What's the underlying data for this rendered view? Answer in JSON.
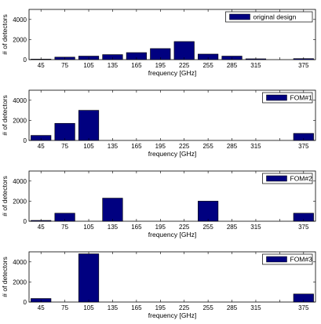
{
  "chart_data": [
    {
      "type": "bar",
      "categories": [
        "45",
        "75",
        "105",
        "135",
        "165",
        "195",
        "225",
        "255",
        "285",
        "315",
        "345",
        "375"
      ],
      "x_tick_labels": [
        "45",
        "75",
        "105",
        "135",
        "165",
        "195",
        "225",
        "255",
        "285",
        "315",
        "",
        "375"
      ],
      "series": [
        {
          "name": "original design",
          "values": [
            50,
            250,
            350,
            500,
            700,
            1100,
            1800,
            550,
            350,
            80,
            0,
            100
          ]
        }
      ],
      "xlabel": "frequency [GHz]",
      "ylabel": "# of detectors",
      "ylim": [
        0,
        5000
      ],
      "yticks": [
        "0",
        "2000",
        "4000"
      ],
      "legend": "top-right",
      "color": "#000080"
    },
    {
      "type": "bar",
      "categories": [
        "45",
        "75",
        "105",
        "135",
        "165",
        "195",
        "225",
        "255",
        "285",
        "315",
        "345",
        "375"
      ],
      "x_tick_labels": [
        "45",
        "75",
        "105",
        "135",
        "165",
        "195",
        "225",
        "255",
        "285",
        "315",
        "",
        "375"
      ],
      "series": [
        {
          "name": "FOM#1",
          "values": [
            500,
            1700,
            3000,
            0,
            0,
            0,
            0,
            0,
            0,
            0,
            0,
            700
          ]
        }
      ],
      "xlabel": "frequency [GHz]",
      "ylabel": "# of detectors",
      "ylim": [
        0,
        5000
      ],
      "yticks": [
        "0",
        "2000",
        "4000"
      ],
      "legend": "top-right",
      "color": "#000080"
    },
    {
      "type": "bar",
      "categories": [
        "45",
        "75",
        "105",
        "135",
        "165",
        "195",
        "225",
        "255",
        "285",
        "315",
        "345",
        "375"
      ],
      "x_tick_labels": [
        "45",
        "75",
        "105",
        "135",
        "165",
        "195",
        "225",
        "255",
        "285",
        "315",
        "",
        "375"
      ],
      "series": [
        {
          "name": "FOM#2",
          "values": [
            80,
            800,
            0,
            2300,
            0,
            0,
            0,
            2000,
            0,
            0,
            0,
            800
          ]
        }
      ],
      "xlabel": "frequency [GHz]",
      "ylabel": "# of detectors",
      "ylim": [
        0,
        5000
      ],
      "yticks": [
        "0",
        "2000",
        "4000"
      ],
      "legend": "top-right",
      "color": "#000080"
    },
    {
      "type": "bar",
      "categories": [
        "45",
        "75",
        "105",
        "135",
        "165",
        "195",
        "225",
        "255",
        "285",
        "315",
        "345",
        "375"
      ],
      "x_tick_labels": [
        "45",
        "75",
        "105",
        "135",
        "165",
        "195",
        "225",
        "255",
        "285",
        "315",
        "",
        "375"
      ],
      "series": [
        {
          "name": "FOM#3",
          "values": [
            350,
            0,
            4800,
            0,
            0,
            0,
            0,
            0,
            0,
            0,
            0,
            800
          ]
        }
      ],
      "xlabel": "frequency [GHz]",
      "ylabel": "# of detectors",
      "ylim": [
        0,
        5000
      ],
      "yticks": [
        "0",
        "2000",
        "4000"
      ],
      "legend": "top-right",
      "color": "#000080"
    }
  ]
}
